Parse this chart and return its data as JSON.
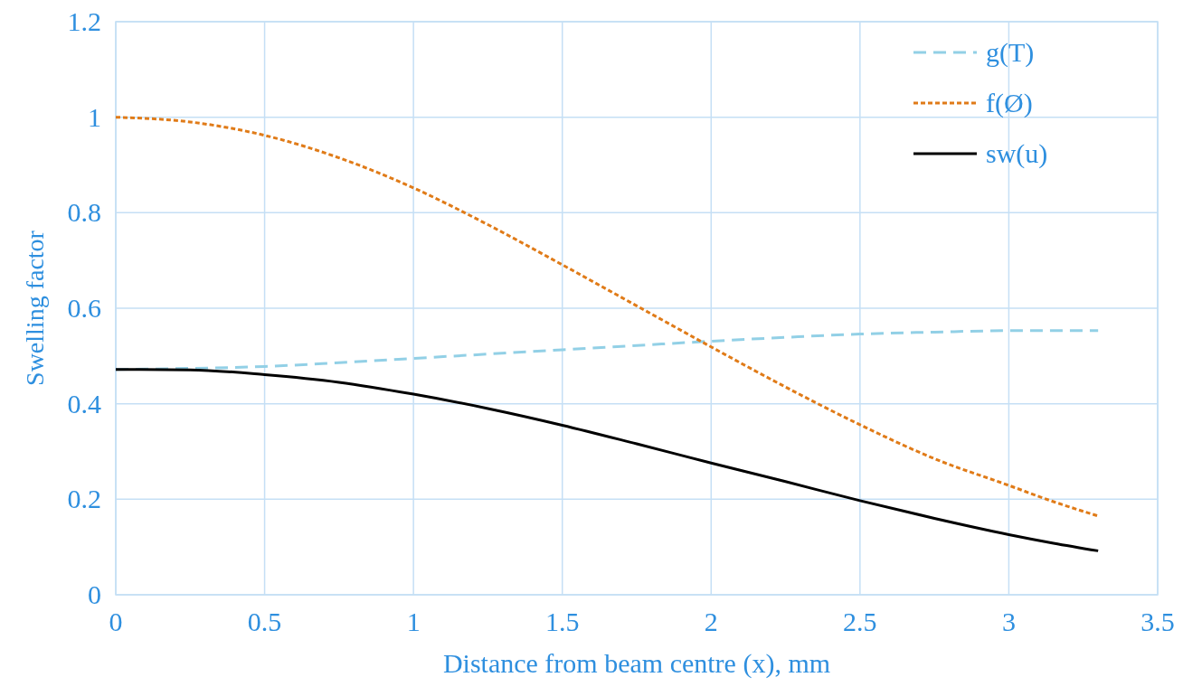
{
  "chart_data": {
    "type": "line",
    "xlabel": "Distance from beam centre (x), mm",
    "ylabel": "Swelling factor",
    "xlim": [
      0,
      3.5
    ],
    "xticks": [
      0,
      0.5,
      1,
      1.5,
      2,
      2.5,
      3,
      3.5
    ],
    "ylim": [
      0,
      1.2
    ],
    "yticks": [
      0,
      0.2,
      0.4,
      0.6,
      0.8,
      1,
      1.2
    ],
    "grid": true,
    "legend": "top right",
    "marker": "none",
    "x": [
      0,
      0.25,
      0.5,
      0.75,
      1,
      1.25,
      1.5,
      1.75,
      2,
      2.25,
      2.5,
      2.75,
      3,
      3.15,
      3.3
    ],
    "series": [
      {
        "name": "g(T)",
        "color": "#92d0e6",
        "line_style": "dashed",
        "values": [
          0.472,
          0.474,
          0.478,
          0.486,
          0.495,
          0.504,
          0.513,
          0.522,
          0.531,
          0.539,
          0.546,
          0.55,
          0.553,
          0.553,
          0.553
        ]
      },
      {
        "name": "f(Ø)",
        "color": "#e07b18",
        "line_style": "dotted",
        "values": [
          1,
          0.99,
          0.962,
          0.915,
          0.852,
          0.775,
          0.691,
          0.605,
          0.519,
          0.435,
          0.356,
          0.285,
          0.229,
          0.195,
          0.165
        ]
      },
      {
        "name": "sw(u)",
        "color": "#000000",
        "line_style": "solid",
        "values": [
          0.472,
          0.471,
          0.461,
          0.445,
          0.42,
          0.39,
          0.355,
          0.316,
          0.276,
          0.237,
          0.197,
          0.16,
          0.126,
          0.108,
          0.092
        ]
      }
    ]
  }
}
